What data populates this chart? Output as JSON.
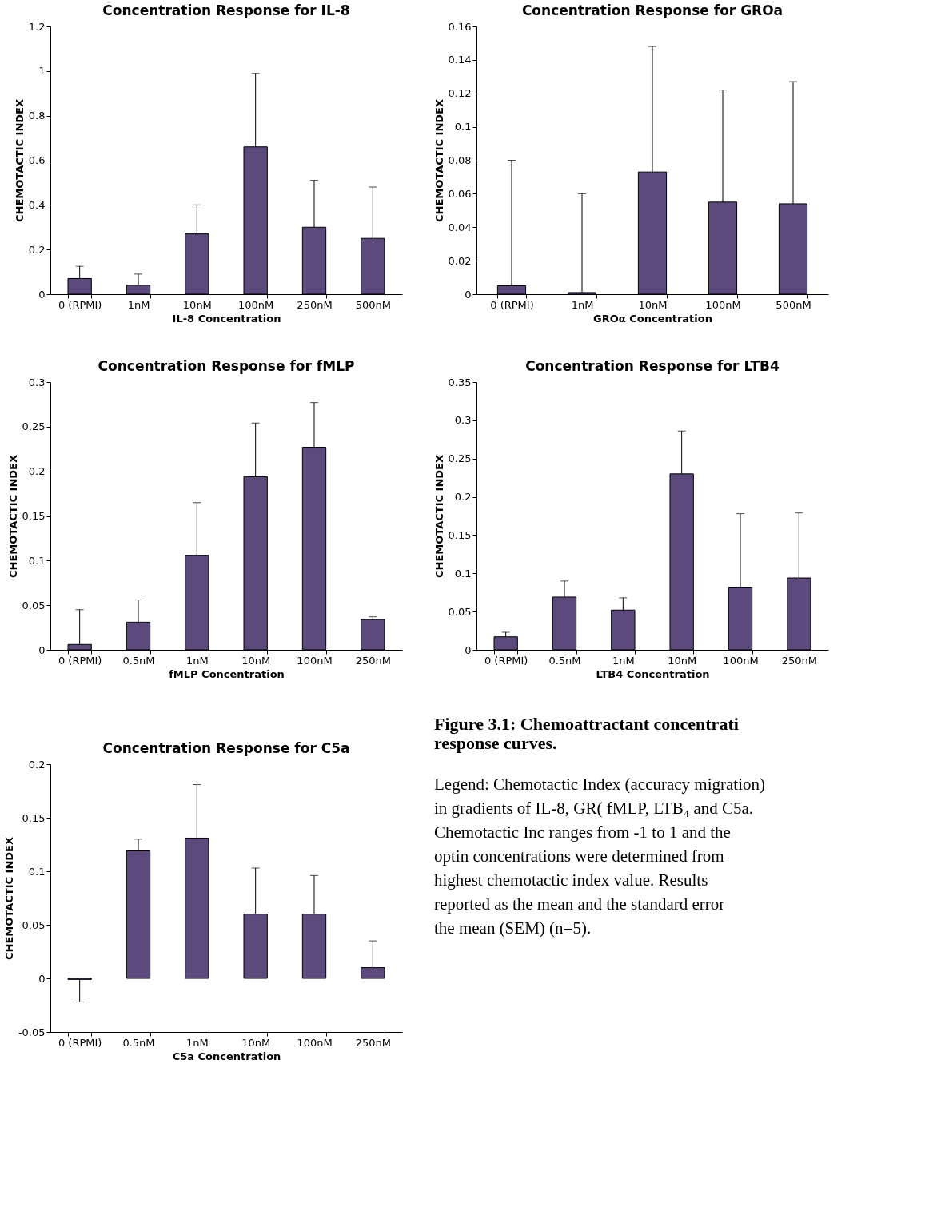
{
  "chart_data": [
    {
      "type": "bar",
      "title": "Concentration Response for IL-8",
      "xlabel": "IL-8 Concentration",
      "ylabel": "CHEMOTACTIC INDEX",
      "categories": [
        "0 (RPMI)",
        "1nM",
        "10nM",
        "100nM",
        "250nM",
        "500nM"
      ],
      "values": [
        0.07,
        0.04,
        0.27,
        0.66,
        0.3,
        0.25
      ],
      "errors": [
        [
          0.07,
          0.125
        ],
        [
          0.04,
          0.09
        ],
        [
          0.27,
          0.4
        ],
        [
          0.66,
          0.99
        ],
        [
          0.3,
          0.51
        ],
        [
          0.25,
          0.48
        ]
      ],
      "color": "#5b4a7b",
      "ylim": [
        0,
        1.2
      ],
      "yticks": [
        0,
        0.2,
        0.4,
        0.6,
        0.8,
        1,
        1.2
      ],
      "grid": false
    },
    {
      "type": "bar",
      "title": "Concentration Response for GROa",
      "xlabel": "GROα Concentration",
      "ylabel": "CHEMOTACTIC INDEX",
      "categories": [
        "0 (RPMI)",
        "1nM",
        "10nM",
        "100nM",
        "500nM"
      ],
      "values": [
        0.005,
        0.001,
        0.073,
        0.055,
        0.054
      ],
      "errors": [
        [
          0.005,
          0.08
        ],
        [
          0.001,
          0.06
        ],
        [
          0.073,
          0.148
        ],
        [
          0.055,
          0.122
        ],
        [
          0.054,
          0.127
        ]
      ],
      "color": "#5b4a7b",
      "ylim": [
        0,
        0.16
      ],
      "yticks": [
        0,
        0.02,
        0.04,
        0.06,
        0.08,
        0.1,
        0.12,
        0.14,
        0.16
      ],
      "grid": false
    },
    {
      "type": "bar",
      "title": "Concentration Response for fMLP",
      "xlabel": "fMLP Concentration",
      "ylabel": "CHEMOTACTIC INDEX",
      "categories": [
        "0 (RPMI)",
        "0.5nM",
        "1nM",
        "10nM",
        "100nM",
        "250nM"
      ],
      "values": [
        0.006,
        0.031,
        0.106,
        0.194,
        0.227,
        0.034
      ],
      "errors": [
        [
          0.006,
          0.045
        ],
        [
          0.031,
          0.056
        ],
        [
          0.106,
          0.165
        ],
        [
          0.194,
          0.254
        ],
        [
          0.227,
          0.277
        ],
        [
          0.034,
          0.037
        ]
      ],
      "color": "#5b4a7b",
      "ylim": [
        0,
        0.3
      ],
      "yticks": [
        0,
        0.05,
        0.1,
        0.15,
        0.2,
        0.25,
        0.3
      ],
      "grid": false
    },
    {
      "type": "bar",
      "title": "Concentration Response for LTB4",
      "xlabel": "LTB4 Concentration",
      "ylabel": "CHEMOTACTIC INDEX",
      "categories": [
        "0 (RPMI)",
        "0.5nM",
        "1nM",
        "10nM",
        "100nM",
        "250nM"
      ],
      "values": [
        0.017,
        0.069,
        0.052,
        0.23,
        0.082,
        0.094
      ],
      "errors": [
        [
          0.017,
          0.023
        ],
        [
          0.069,
          0.09
        ],
        [
          0.052,
          0.068
        ],
        [
          0.23,
          0.286
        ],
        [
          0.082,
          0.178
        ],
        [
          0.094,
          0.179
        ]
      ],
      "color": "#5b4a7b",
      "ylim": [
        0,
        0.35
      ],
      "yticks": [
        0,
        0.05,
        0.1,
        0.15,
        0.2,
        0.25,
        0.3,
        0.35
      ],
      "grid": false
    },
    {
      "type": "bar",
      "title": "Concentration Response for C5a",
      "xlabel": "C5a Concentration",
      "ylabel": "CHEMOTACTIC INDEX",
      "categories": [
        "0 (RPMI)",
        "0.5nM",
        "1nM",
        "10nM",
        "100nM",
        "250nM"
      ],
      "values": [
        -0.001,
        0.119,
        0.131,
        0.06,
        0.06,
        0.01
      ],
      "errors": [
        [
          -0.022,
          -0.001
        ],
        [
          0.119,
          0.13
        ],
        [
          0.131,
          0.181
        ],
        [
          0.06,
          0.103
        ],
        [
          0.06,
          0.096
        ],
        [
          0.01,
          0.035
        ]
      ],
      "color": "#5b4a7b",
      "ylim": [
        -0.05,
        0.2
      ],
      "yticks": [
        -0.05,
        0,
        0.05,
        0.1,
        0.15,
        0.2
      ],
      "grid": false
    },
    {
      "type": "other",
      "title": "Figure 3.1: Chemoattractant concentrati response curves.",
      "annotations": [
        "Legend: Chemotactic Index (accuracy migration) in gradients of IL-8, GR( fMLP, LTB₄ and C5a. Chemotactic Inc ranges from -1 to 1 and the optin concentrations were determined from highest chemotactic index value. Results reported as the mean and the standard error the mean (SEM) (n=5)."
      ]
    }
  ]
}
